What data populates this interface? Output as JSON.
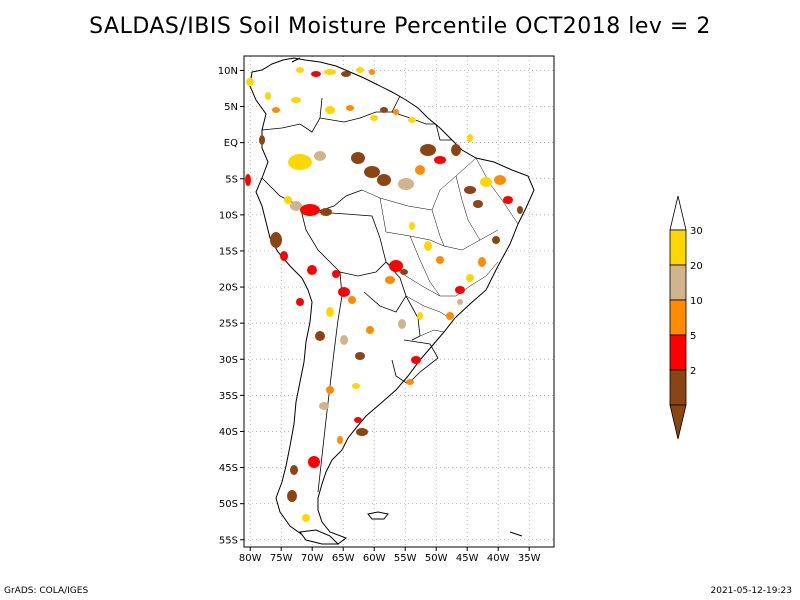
{
  "title": "SALDAS/IBIS Soil Moisture Percentile OCT2018 lev = 2",
  "map": {
    "lon_range": [
      -81,
      -31
    ],
    "lat_range": [
      -56,
      12
    ],
    "lon_ticks": [
      {
        "value": -80,
        "label": "80W"
      },
      {
        "value": -75,
        "label": "75W"
      },
      {
        "value": -70,
        "label": "70W"
      },
      {
        "value": -65,
        "label": "65W"
      },
      {
        "value": -60,
        "label": "60W"
      },
      {
        "value": -55,
        "label": "55W"
      },
      {
        "value": -50,
        "label": "50W"
      },
      {
        "value": -45,
        "label": "45W"
      },
      {
        "value": -40,
        "label": "40W"
      },
      {
        "value": -35,
        "label": "35W"
      }
    ],
    "lat_ticks": [
      {
        "value": 10,
        "label": "10N"
      },
      {
        "value": 5,
        "label": "5N"
      },
      {
        "value": 0,
        "label": "EQ"
      },
      {
        "value": -5,
        "label": "5S"
      },
      {
        "value": -10,
        "label": "10S"
      },
      {
        "value": -15,
        "label": "15S"
      },
      {
        "value": -20,
        "label": "20S"
      },
      {
        "value": -25,
        "label": "25S"
      },
      {
        "value": -30,
        "label": "30S"
      },
      {
        "value": -35,
        "label": "35S"
      },
      {
        "value": -40,
        "label": "40S"
      },
      {
        "value": -45,
        "label": "45S"
      },
      {
        "value": -50,
        "label": "50S"
      },
      {
        "value": -55,
        "label": "55S"
      }
    ],
    "grid": true
  },
  "legend": {
    "levels": [
      {
        "label": "2",
        "color": "#8B4513"
      },
      {
        "label": "5",
        "color": "#FF0000"
      },
      {
        "label": "10",
        "color": "#FF8C00"
      },
      {
        "label": "20",
        "color": "#D2B48C"
      },
      {
        "label": "30",
        "color": "#FFD700"
      }
    ],
    "lower_color": "#8B4513",
    "upper_color": "#FFFFFF"
  },
  "footer": {
    "left": "GrADS: COLA/IGES",
    "right": "2021-05-12-19:23"
  }
}
